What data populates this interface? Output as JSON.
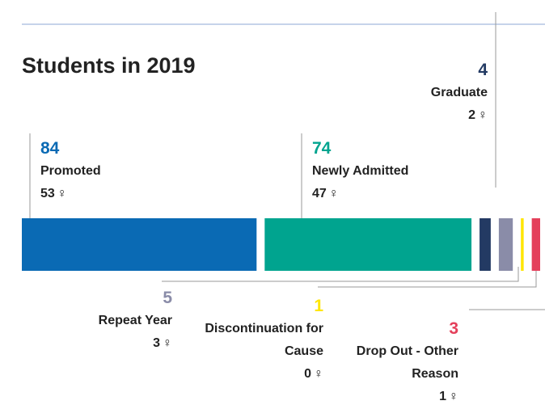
{
  "chart_data": {
    "type": "stacked-bar",
    "title": "Students in 2019",
    "female_symbol": "♀",
    "categories": [
      "Promoted",
      "Newly Admitted",
      "Graduate",
      "Repeat Year",
      "Discontinuation for Cause",
      "Drop Out - Other Reason"
    ],
    "values": [
      84,
      74,
      4,
      5,
      1,
      3
    ],
    "female": [
      53,
      47,
      2,
      3,
      0,
      1
    ],
    "colors": [
      "#0a6ab4",
      "#00a48f",
      "#233a63",
      "#8a8ca8",
      "#ffe600",
      "#e4405b"
    ]
  }
}
